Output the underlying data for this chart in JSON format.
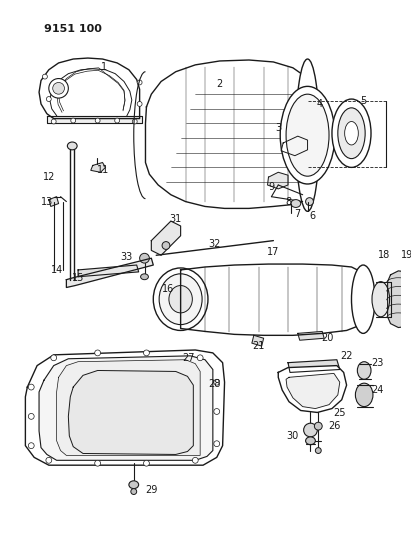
{
  "background_color": "#ffffff",
  "line_color": "#1a1a1a",
  "title": "9151 100",
  "fig_width": 4.11,
  "fig_height": 5.33,
  "dpi": 100
}
